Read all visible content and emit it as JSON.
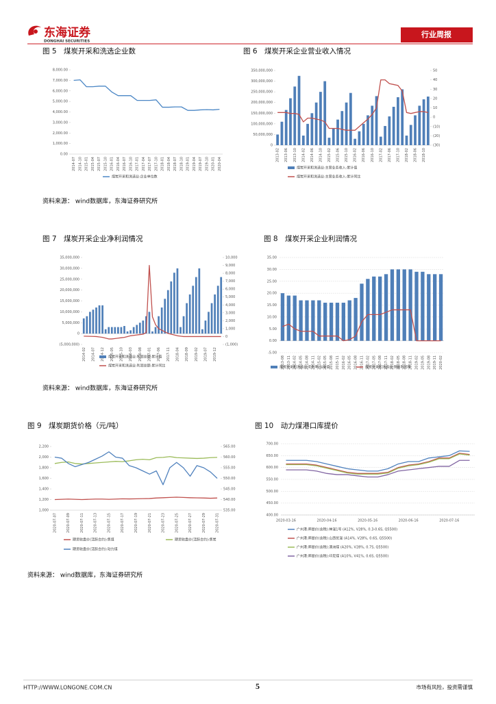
{
  "header": {
    "logo": "东海证券",
    "logo_en": "DONGHAI SECURITIES",
    "tag": "行业周报"
  },
  "sources": [
    "资料来源： wind数据库，东海证券研究所",
    "资料来源： wind数据库，东海证券研究所",
    "资料来源： wind数据库，东海证券研究所"
  ],
  "footer": {
    "url": "HTTP://WWW.LONGONE.COM.CN",
    "page": "5",
    "note": "市场有风险，投资需谨慎"
  },
  "chart_data": [
    {
      "type": "line",
      "title": "图 5　煤炭开采和洗选企业数",
      "grid": false,
      "categories": [
        "2014-07",
        "2014-10",
        "2015-01",
        "2015-04",
        "2015-07",
        "2015-10",
        "2016-01",
        "2016-04",
        "2016-07",
        "2016-10",
        "2017-01",
        "2017-04",
        "2017-07",
        "2017-10",
        "2018-01",
        "2018-04",
        "2018-07",
        "2018-10",
        "2019-01",
        "2019-04",
        "2019-07",
        "2019-10",
        "2020-01",
        "2020-04"
      ],
      "series": [
        {
          "name": "煤炭开采和洗选业:企业单位数",
          "color": "#4a86c5",
          "kind": "line",
          "values": [
            7000,
            7050,
            6400,
            6400,
            6450,
            6450,
            5900,
            5550,
            5550,
            5550,
            5100,
            5100,
            5100,
            5150,
            4450,
            4450,
            4480,
            4480,
            4150,
            4150,
            4200,
            4220,
            4200,
            4250
          ]
        }
      ],
      "ylim": [
        0,
        8000
      ],
      "yticks": [
        {
          "value": 0,
          "label": "0.00"
        },
        {
          "value": 1000,
          "label": "1,000.00"
        },
        {
          "value": 2000,
          "label": "2,000.00"
        },
        {
          "value": 3000,
          "label": "3,000.00"
        },
        {
          "value": 4000,
          "label": "4,000.00"
        },
        {
          "value": 5000,
          "label": "5,000.00"
        },
        {
          "value": 6000,
          "label": "6,000.00"
        },
        {
          "value": 7000,
          "label": "7,000.00"
        },
        {
          "value": 8000,
          "label": "8,000.00"
        }
      ]
    },
    {
      "type": "bar",
      "title": "图 6　煤炭开采企业营业收入情况",
      "grid": false,
      "categories": [
        "2013-02",
        null,
        "2013-06",
        null,
        "2013-10",
        null,
        "2014-02",
        null,
        "2014-06",
        null,
        "2014-10",
        null,
        "2015-02",
        null,
        "2015-06",
        null,
        "2015-10",
        null,
        "2016-02",
        null,
        "2016-06",
        null,
        "2016-10",
        null,
        "2017-02",
        null,
        "2017-06",
        null,
        "2017-10",
        null,
        "2018-02",
        null,
        "2018-06",
        null,
        "2018-10",
        null
      ],
      "series": [
        {
          "name": "煤炭开采和洗选业:主营业务收入:累计值",
          "color": "#4f7fb8",
          "kind": "bar",
          "values": [
            50000000,
            110000000,
            165000000,
            220000000,
            275000000,
            325000000,
            45000000,
            100000000,
            150000000,
            200000000,
            250000000,
            300000000,
            35000000,
            80000000,
            120000000,
            160000000,
            200000000,
            245000000,
            30000000,
            65000000,
            100000000,
            140000000,
            185000000,
            230000000,
            40000000,
            90000000,
            135000000,
            180000000,
            225000000,
            262000000,
            45000000,
            95000000,
            140000000,
            185000000,
            215000000,
            228000000
          ]
        },
        {
          "name": "煤炭开采和洗选业:主营业务收入:累计同比",
          "color": "#c0504d",
          "kind": "line",
          "axis": "y2",
          "values": [
            5,
            5,
            5,
            4,
            4,
            3,
            -5,
            -1,
            -1,
            -2,
            -3,
            -5,
            -12,
            -12,
            -12,
            -13,
            -14,
            -14,
            -14,
            -10,
            -6,
            -2,
            3,
            10,
            40,
            40,
            36,
            35,
            34,
            28,
            5,
            4,
            5,
            6,
            6,
            5
          ]
        }
      ],
      "ylim": [
        0,
        350000000
      ],
      "yticks": [
        0,
        {
          "value": 50000000,
          "label": "50,000,000"
        },
        {
          "value": 100000000,
          "label": "100,000,000"
        },
        {
          "value": 150000000,
          "label": "150,000,000"
        },
        {
          "value": 200000000,
          "label": "200,000,000"
        },
        {
          "value": 250000000,
          "label": "250,000,000"
        },
        {
          "value": 300000000,
          "label": "300,000,000"
        },
        {
          "value": 350000000,
          "label": "350,000,000"
        }
      ],
      "y2lim": [
        -30,
        50
      ],
      "y2ticks": [
        {
          "value": -30,
          "label": "(30)"
        },
        {
          "value": -20,
          "label": "(20)"
        },
        {
          "value": -10,
          "label": "(10)"
        },
        0,
        10,
        20,
        30,
        40,
        50
      ]
    },
    {
      "type": "bar",
      "title": "图 7　煤炭开采企业净利润情况",
      "grid": false,
      "categories": [
        "2014-02",
        null,
        null,
        "2014-07",
        null,
        null,
        "2014-12",
        null,
        null,
        "2015-05",
        null,
        null,
        "2015-10",
        null,
        null,
        "2016-03",
        null,
        null,
        "2016-08",
        null,
        null,
        "2017-01",
        null,
        null,
        "2017-06",
        null,
        null,
        "2017-11",
        null,
        null,
        "2018-04",
        null,
        null,
        "2018-09",
        null,
        null,
        "2019-02",
        null,
        null,
        "2019-07",
        null,
        null,
        "2019-12",
        null,
        null
      ],
      "series": [
        {
          "name": "煤炭开采和洗选业:利润总额:累计值",
          "color": "#4f7fb8",
          "kind": "bar",
          "values": [
            7000000,
            8000000,
            10000000,
            11000000,
            12000000,
            13000000,
            13000000,
            2000000,
            3000000,
            3000000,
            3000000,
            3000000,
            3000000,
            3500000,
            1000000,
            1500000,
            3000000,
            4000000,
            5000000,
            6000000,
            8000000,
            10000000,
            1000000,
            3000000,
            8000000,
            12000000,
            16000000,
            20000000,
            24000000,
            28000000,
            30000000,
            3000000,
            8000000,
            14000000,
            18000000,
            22000000,
            26000000,
            30000000,
            2000000,
            6000000,
            10000000,
            14000000,
            18000000,
            22000000,
            26000000
          ]
        },
        {
          "name": "煤炭开采和洗选业:利润总额:累计同比",
          "color": "#c0504d",
          "kind": "line",
          "axis": "y2",
          "values": [
            50,
            40,
            30,
            20,
            0,
            -50,
            -100,
            -200,
            -300,
            -300,
            -250,
            -200,
            -150,
            -100,
            0,
            100,
            150,
            200,
            250,
            300,
            500,
            9000,
            2500,
            1500,
            1000,
            800,
            600,
            400,
            300,
            200,
            100,
            50,
            0,
            0,
            0,
            0,
            0,
            0,
            0,
            0,
            0,
            0,
            0,
            0,
            0
          ]
        }
      ],
      "ylim": [
        -5000000,
        35000000
      ],
      "yticks": [
        {
          "value": -5000000,
          "label": "(5,000,000)"
        },
        0,
        {
          "value": 5000000,
          "label": "5,000,000"
        },
        {
          "value": 10000000,
          "label": "10,000,000"
        },
        {
          "value": 15000000,
          "label": "15,000,000"
        },
        {
          "value": 20000000,
          "label": "20,000,000"
        },
        {
          "value": 25000000,
          "label": "25,000,000"
        },
        {
          "value": 30000000,
          "label": "30,000,000"
        },
        {
          "value": 35000000,
          "label": "35,000,000"
        }
      ],
      "y2lim": [
        -1000,
        10000
      ],
      "y2ticks": [
        {
          "value": -1000,
          "label": "(1,000)"
        },
        0,
        {
          "value": 1000,
          "label": "1,000"
        },
        {
          "value": 2000,
          "label": "2,000"
        },
        {
          "value": 3000,
          "label": "3,000"
        },
        {
          "value": 4000,
          "label": "4,000"
        },
        {
          "value": 5000,
          "label": "5,000"
        },
        {
          "value": 6000,
          "label": "6,000"
        },
        {
          "value": 7000,
          "label": "7,000"
        },
        {
          "value": 8000,
          "label": "8,000"
        },
        {
          "value": 9000,
          "label": "9,000"
        },
        {
          "value": 10000,
          "label": "10,000"
        }
      ]
    },
    {
      "type": "bar",
      "title": "图 8　煤炭开采企业利润情况",
      "grid": true,
      "categories": [
        "2013-08",
        "2013-11",
        "2014-02",
        "2014-05",
        "2014-08",
        "2014-11",
        "2015-02",
        "2015-05",
        "2015-08",
        "2015-11",
        "2016-02",
        "2016-05",
        "2016-08",
        "2016-11",
        "2017-02",
        "2017-05",
        "2017-08",
        "2017-11",
        "2018-02",
        "2018-05",
        "2018-08",
        "2018-11",
        "2019-02",
        "2019-05",
        "2019-08",
        "2019-11",
        "2020-02"
      ],
      "series": [
        {
          "name": "煤炭开采和洗选业:毛利率:当年值",
          "color": "#4f7fb8",
          "kind": "bar",
          "values": [
            20,
            19,
            19,
            17,
            17,
            17,
            17,
            16,
            16,
            16,
            16,
            17,
            18,
            24,
            26,
            27,
            27,
            28,
            30,
            30,
            30,
            30,
            29,
            29,
            28,
            28,
            28
          ]
        },
        {
          "name": "煤炭开采和洗选业:销售利润率",
          "color": "#c0504d",
          "kind": "line",
          "values": [
            6,
            7,
            5,
            4,
            4,
            4,
            2,
            2,
            2,
            2,
            0,
            0.5,
            2,
            8,
            11,
            11,
            11,
            12,
            13,
            13,
            13,
            13,
            0,
            0,
            0,
            0,
            0
          ]
        }
      ],
      "ylim": [
        -5,
        35
      ],
      "yticks": [
        {
          "value": -5,
          "label": "-5.00"
        },
        {
          "value": 0,
          "label": "0.00"
        },
        {
          "value": 5,
          "label": "5.00"
        },
        {
          "value": 10,
          "label": "10.00"
        },
        {
          "value": 15,
          "label": "15.00"
        },
        {
          "value": 20,
          "label": "20.00"
        },
        {
          "value": 25,
          "label": "25.00"
        },
        {
          "value": 30,
          "label": "30.00"
        },
        {
          "value": 35,
          "label": "35.00"
        }
      ]
    },
    {
      "type": "line",
      "title": "图 9　煤炭期货价格（元/吨）",
      "grid": false,
      "categories": [
        "2020-07-07",
        null,
        "2020-07-09",
        null,
        "2020-07-11",
        null,
        "2020-07-13",
        null,
        "2020-07-15",
        null,
        "2020-07-17",
        null,
        "2020-07-19",
        null,
        "2020-07-21",
        null,
        "2020-07-23",
        null,
        "2020-07-25",
        null,
        "2020-07-27",
        null,
        "2020-07-29",
        null,
        "2020-07-31"
      ],
      "series": [
        {
          "name": "期货收盘价(活跃合约):焦煤",
          "color": "#c0504d",
          "kind": "line",
          "values": [
            1200,
            1205,
            1210,
            1205,
            1200,
            1205,
            1210,
            1210,
            1205,
            1210,
            1215,
            1212,
            1215,
            1218,
            1220,
            1230,
            1235,
            1240,
            1245,
            1240,
            1235,
            1232,
            1230,
            1225,
            1230
          ]
        },
        {
          "name": "期货收盘价(活跃合约):焦炭",
          "color": "#9bbb59",
          "kind": "line",
          "values": [
            1880,
            1900,
            1910,
            1880,
            1870,
            1880,
            1890,
            1900,
            1910,
            1920,
            1915,
            1930,
            1950,
            1960,
            1950,
            1990,
            1995,
            2010,
            1990,
            1985,
            1980,
            1975,
            1980,
            1990,
            1995
          ]
        },
        {
          "name": "期货收盘价(活跃合约):动力煤",
          "color": "#4f81bd",
          "kind": "line",
          "axis": "y2",
          "values": [
            560,
            559.5,
            557,
            555.5,
            556.5,
            557.5,
            559,
            560.5,
            562.5,
            560,
            559.5,
            556,
            555,
            553.5,
            552,
            553.5,
            547,
            555,
            557.5,
            555,
            551,
            556,
            555,
            553,
            550
          ]
        }
      ],
      "ylim": [
        1000,
        2200
      ],
      "yticks": [
        {
          "value": 1000,
          "label": "1,000"
        },
        {
          "value": 1200,
          "label": "1,200"
        },
        {
          "value": 1400,
          "label": "1,400"
        },
        {
          "value": 1600,
          "label": "1,600"
        },
        {
          "value": 1800,
          "label": "1,800"
        },
        {
          "value": 2000,
          "label": "2,000"
        },
        {
          "value": 2200,
          "label": "2,200"
        }
      ],
      "y2lim": [
        535,
        565
      ],
      "y2ticks": [
        {
          "value": 535,
          "label": "535.00"
        },
        {
          "value": 540,
          "label": "540.00"
        },
        {
          "value": 545,
          "label": "545.00"
        },
        {
          "value": 550,
          "label": "550.00"
        },
        {
          "value": 555,
          "label": "555.00"
        },
        {
          "value": 560,
          "label": "560.00"
        },
        {
          "value": 565,
          "label": "565.00"
        }
      ]
    },
    {
      "type": "line",
      "title": "图 10　动力煤港口库提价",
      "grid": true,
      "categories": [
        "2020-03-16",
        null,
        null,
        null,
        "2020-04-16",
        null,
        null,
        null,
        "2020-05-16",
        null,
        null,
        null,
        "2020-06-16",
        null,
        null,
        null,
        "2020-07-16",
        null,
        null
      ],
      "series": [
        {
          "name": "广州港:库提价(含税):神混1号 (A12%, V28%, 0.3-0.6S, Q5500)",
          "color": "#4f81bd",
          "kind": "line",
          "values": [
            630,
            630,
            630,
            625,
            615,
            605,
            595,
            590,
            585,
            585,
            595,
            615,
            625,
            625,
            640,
            645,
            650,
            670,
            668
          ]
        },
        {
          "name": "广州港:库提价(含税):山西优混 (A14%, V28%, 0.6S, Q5500)",
          "color": "#c0504d",
          "kind": "line",
          "values": [
            615,
            615,
            615,
            610,
            600,
            590,
            580,
            575,
            575,
            575,
            580,
            600,
            610,
            615,
            625,
            640,
            640,
            660,
            655
          ]
        },
        {
          "name": "广州港:库提价(含税):澳洲煤 (A20%, V28%, 0.7S, Q5500)",
          "color": "#9bbb59",
          "kind": "line",
          "values": [
            612,
            612,
            612,
            607,
            597,
            587,
            577,
            572,
            572,
            572,
            577,
            597,
            607,
            612,
            622,
            637,
            637,
            657,
            652
          ]
        },
        {
          "name": "广州港:库提价(含税):印尼煤 (A10%, V41%, 0.6S, Q5500)",
          "color": "#8064a2",
          "kind": "line",
          "values": [
            590,
            590,
            590,
            585,
            575,
            570,
            570,
            565,
            560,
            560,
            570,
            585,
            590,
            595,
            600,
            605,
            605,
            630,
            630
          ]
        }
      ],
      "ylim": [
        400,
        700
      ],
      "yticks": [
        {
          "value": 400,
          "label": "400.00"
        },
        {
          "value": 450,
          "label": "450.00"
        },
        {
          "value": 500,
          "label": "500.00"
        },
        {
          "value": 550,
          "label": "550.00"
        },
        {
          "value": 600,
          "label": "600.00"
        },
        {
          "value": 650,
          "label": "650.00"
        },
        {
          "value": 700,
          "label": "700.00"
        }
      ]
    }
  ]
}
